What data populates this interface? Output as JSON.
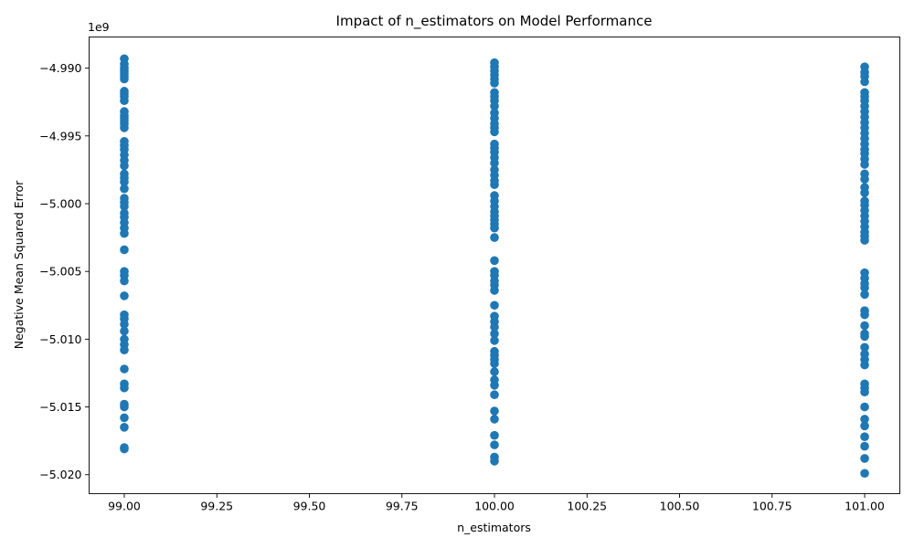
{
  "chart_data": {
    "type": "scatter",
    "title": "Impact of n_estimators on Model Performance",
    "xlabel": "n_estimators",
    "ylabel": "Negative Mean Squared Error",
    "offset_label": "1e9",
    "xlim": [
      98.905,
      101.095
    ],
    "ylim": [
      -5.0214,
      -4.9877
    ],
    "x_ticks": [
      99.0,
      99.25,
      99.5,
      99.75,
      100.0,
      100.25,
      100.5,
      100.75,
      101.0
    ],
    "x_tick_labels": [
      "99.00",
      "99.25",
      "99.50",
      "99.75",
      "100.00",
      "100.25",
      "100.50",
      "100.75",
      "101.00"
    ],
    "y_ticks": [
      -4.99,
      -4.995,
      -5.0,
      -5.005,
      -5.01,
      -5.015,
      -5.02
    ],
    "y_tick_labels": [
      "−4.990",
      "−4.995",
      "−5.000",
      "−5.005",
      "−5.010",
      "−5.015",
      "−5.020"
    ],
    "grid": false,
    "series": [
      {
        "color": "#1f77b4",
        "points": [
          {
            "x": 99,
            "y": -4.9893
          },
          {
            "x": 99,
            "y": -4.9897
          },
          {
            "x": 99,
            "y": -4.99
          },
          {
            "x": 99,
            "y": -4.9902
          },
          {
            "x": 99,
            "y": -4.9904
          },
          {
            "x": 99,
            "y": -4.9906
          },
          {
            "x": 99,
            "y": -4.9908
          },
          {
            "x": 99,
            "y": -4.9917
          },
          {
            "x": 99,
            "y": -4.9919
          },
          {
            "x": 99,
            "y": -4.9921
          },
          {
            "x": 99,
            "y": -4.9924
          },
          {
            "x": 99,
            "y": -4.9932
          },
          {
            "x": 99,
            "y": -4.9935
          },
          {
            "x": 99,
            "y": -4.9937
          },
          {
            "x": 99,
            "y": -4.9939
          },
          {
            "x": 99,
            "y": -4.9941
          },
          {
            "x": 99,
            "y": -4.9944
          },
          {
            "x": 99,
            "y": -4.9954
          },
          {
            "x": 99,
            "y": -4.9957
          },
          {
            "x": 99,
            "y": -4.996
          },
          {
            "x": 99,
            "y": -4.9964
          },
          {
            "x": 99,
            "y": -4.9968
          },
          {
            "x": 99,
            "y": -4.9972
          },
          {
            "x": 99,
            "y": -4.9978
          },
          {
            "x": 99,
            "y": -4.9981
          },
          {
            "x": 99,
            "y": -4.9984
          },
          {
            "x": 99,
            "y": -4.9989
          },
          {
            "x": 99,
            "y": -4.9996
          },
          {
            "x": 99,
            "y": -4.9999
          },
          {
            "x": 99,
            "y": -5.0002
          },
          {
            "x": 99,
            "y": -5.0007
          },
          {
            "x": 99,
            "y": -5.001
          },
          {
            "x": 99,
            "y": -5.0014
          },
          {
            "x": 99,
            "y": -5.0018
          },
          {
            "x": 99,
            "y": -5.0022
          },
          {
            "x": 99,
            "y": -5.0034
          },
          {
            "x": 99,
            "y": -5.005
          },
          {
            "x": 99,
            "y": -5.0053
          },
          {
            "x": 99,
            "y": -5.0057
          },
          {
            "x": 99,
            "y": -5.0068
          },
          {
            "x": 99,
            "y": -5.0082
          },
          {
            "x": 99,
            "y": -5.0085
          },
          {
            "x": 99,
            "y": -5.0089
          },
          {
            "x": 99,
            "y": -5.0094
          },
          {
            "x": 99,
            "y": -5.01
          },
          {
            "x": 99,
            "y": -5.0104
          },
          {
            "x": 99,
            "y": -5.0108
          },
          {
            "x": 99,
            "y": -5.0122
          },
          {
            "x": 99,
            "y": -5.0133
          },
          {
            "x": 99,
            "y": -5.0136
          },
          {
            "x": 99,
            "y": -5.0148
          },
          {
            "x": 99,
            "y": -5.015
          },
          {
            "x": 99,
            "y": -5.0158
          },
          {
            "x": 99,
            "y": -5.0165
          },
          {
            "x": 99,
            "y": -5.018
          },
          {
            "x": 99,
            "y": -5.0181
          },
          {
            "x": 100,
            "y": -4.9896
          },
          {
            "x": 100,
            "y": -4.9899
          },
          {
            "x": 100,
            "y": -4.9902
          },
          {
            "x": 100,
            "y": -4.9905
          },
          {
            "x": 100,
            "y": -4.9908
          },
          {
            "x": 100,
            "y": -4.9911
          },
          {
            "x": 100,
            "y": -4.9918
          },
          {
            "x": 100,
            "y": -4.9921
          },
          {
            "x": 100,
            "y": -4.9924
          },
          {
            "x": 100,
            "y": -4.9928
          },
          {
            "x": 100,
            "y": -4.9933
          },
          {
            "x": 100,
            "y": -4.9937
          },
          {
            "x": 100,
            "y": -4.9941
          },
          {
            "x": 100,
            "y": -4.9944
          },
          {
            "x": 100,
            "y": -4.9947
          },
          {
            "x": 100,
            "y": -4.9956
          },
          {
            "x": 100,
            "y": -4.9959
          },
          {
            "x": 100,
            "y": -4.9962
          },
          {
            "x": 100,
            "y": -4.9966
          },
          {
            "x": 100,
            "y": -4.997
          },
          {
            "x": 100,
            "y": -4.9975
          },
          {
            "x": 100,
            "y": -4.9979
          },
          {
            "x": 100,
            "y": -4.9983
          },
          {
            "x": 100,
            "y": -4.9986
          },
          {
            "x": 100,
            "y": -4.9994
          },
          {
            "x": 100,
            "y": -4.9998
          },
          {
            "x": 100,
            "y": -5.0002
          },
          {
            "x": 100,
            "y": -5.0006
          },
          {
            "x": 100,
            "y": -5.0009
          },
          {
            "x": 100,
            "y": -5.0012
          },
          {
            "x": 100,
            "y": -5.0015
          },
          {
            "x": 100,
            "y": -5.0018
          },
          {
            "x": 100,
            "y": -5.0025
          },
          {
            "x": 100,
            "y": -5.0042
          },
          {
            "x": 100,
            "y": -5.005
          },
          {
            "x": 100,
            "y": -5.0053
          },
          {
            "x": 100,
            "y": -5.0057
          },
          {
            "x": 100,
            "y": -5.006
          },
          {
            "x": 100,
            "y": -5.0064
          },
          {
            "x": 100,
            "y": -5.0075
          },
          {
            "x": 100,
            "y": -5.0083
          },
          {
            "x": 100,
            "y": -5.0087
          },
          {
            "x": 100,
            "y": -5.0091
          },
          {
            "x": 100,
            "y": -5.0096
          },
          {
            "x": 100,
            "y": -5.0101
          },
          {
            "x": 100,
            "y": -5.0109
          },
          {
            "x": 100,
            "y": -5.0112
          },
          {
            "x": 100,
            "y": -5.0115
          },
          {
            "x": 100,
            "y": -5.0118
          },
          {
            "x": 100,
            "y": -5.0124
          },
          {
            "x": 100,
            "y": -5.013
          },
          {
            "x": 100,
            "y": -5.0134
          },
          {
            "x": 100,
            "y": -5.0141
          },
          {
            "x": 100,
            "y": -5.0153
          },
          {
            "x": 100,
            "y": -5.0159
          },
          {
            "x": 100,
            "y": -5.0171
          },
          {
            "x": 100,
            "y": -5.0178
          },
          {
            "x": 100,
            "y": -5.0187
          },
          {
            "x": 100,
            "y": -5.019
          },
          {
            "x": 101,
            "y": -4.9899
          },
          {
            "x": 101,
            "y": -4.9903
          },
          {
            "x": 101,
            "y": -4.9906
          },
          {
            "x": 101,
            "y": -4.991
          },
          {
            "x": 101,
            "y": -4.9918
          },
          {
            "x": 101,
            "y": -4.9921
          },
          {
            "x": 101,
            "y": -4.9924
          },
          {
            "x": 101,
            "y": -4.9928
          },
          {
            "x": 101,
            "y": -4.9932
          },
          {
            "x": 101,
            "y": -4.9936
          },
          {
            "x": 101,
            "y": -4.994
          },
          {
            "x": 101,
            "y": -4.9944
          },
          {
            "x": 101,
            "y": -4.9948
          },
          {
            "x": 101,
            "y": -4.9952
          },
          {
            "x": 101,
            "y": -4.9956
          },
          {
            "x": 101,
            "y": -4.996
          },
          {
            "x": 101,
            "y": -4.9963
          },
          {
            "x": 101,
            "y": -4.9967
          },
          {
            "x": 101,
            "y": -4.9971
          },
          {
            "x": 101,
            "y": -4.9978
          },
          {
            "x": 101,
            "y": -4.9982
          },
          {
            "x": 101,
            "y": -4.9988
          },
          {
            "x": 101,
            "y": -4.9992
          },
          {
            "x": 101,
            "y": -4.9998
          },
          {
            "x": 101,
            "y": -5.0001
          },
          {
            "x": 101,
            "y": -5.0005
          },
          {
            "x": 101,
            "y": -5.0009
          },
          {
            "x": 101,
            "y": -5.0013
          },
          {
            "x": 101,
            "y": -5.0017
          },
          {
            "x": 101,
            "y": -5.0021
          },
          {
            "x": 101,
            "y": -5.0024
          },
          {
            "x": 101,
            "y": -5.0027
          },
          {
            "x": 101,
            "y": -5.0051
          },
          {
            "x": 101,
            "y": -5.0055
          },
          {
            "x": 101,
            "y": -5.0059
          },
          {
            "x": 101,
            "y": -5.0062
          },
          {
            "x": 101,
            "y": -5.0067
          },
          {
            "x": 101,
            "y": -5.0079
          },
          {
            "x": 101,
            "y": -5.0082
          },
          {
            "x": 101,
            "y": -5.009
          },
          {
            "x": 101,
            "y": -5.0096
          },
          {
            "x": 101,
            "y": -5.0098
          },
          {
            "x": 101,
            "y": -5.0106
          },
          {
            "x": 101,
            "y": -5.0111
          },
          {
            "x": 101,
            "y": -5.0115
          },
          {
            "x": 101,
            "y": -5.0119
          },
          {
            "x": 101,
            "y": -5.0133
          },
          {
            "x": 101,
            "y": -5.0136
          },
          {
            "x": 101,
            "y": -5.0139
          },
          {
            "x": 101,
            "y": -5.015
          },
          {
            "x": 101,
            "y": -5.0159
          },
          {
            "x": 101,
            "y": -5.0164
          },
          {
            "x": 101,
            "y": -5.0172
          },
          {
            "x": 101,
            "y": -5.0179
          },
          {
            "x": 101,
            "y": -5.0188
          },
          {
            "x": 101,
            "y": -5.0199
          }
        ]
      }
    ]
  }
}
